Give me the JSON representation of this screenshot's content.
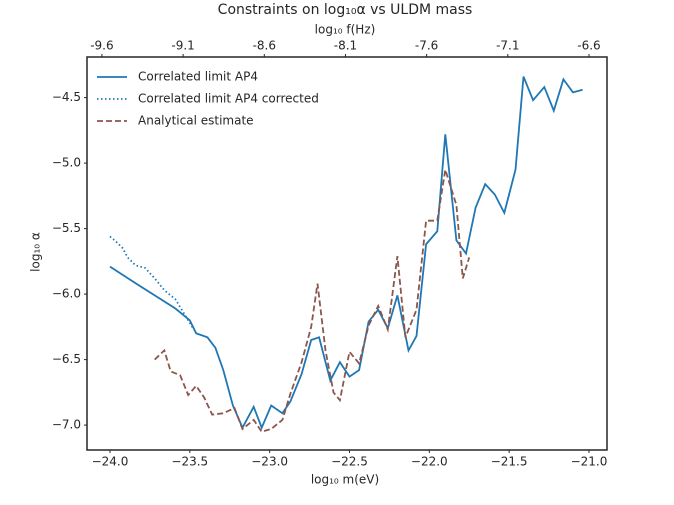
{
  "chart_data": {
    "type": "line",
    "title": "Constraints on log₁₀α vs ULDM mass",
    "x_label": "log₁₀ m(eV)",
    "x2_label": "log₁₀ f(Hz)",
    "y_label": "log₁₀ α",
    "xlim": [
      -24.144,
      -20.887
    ],
    "xticks": [
      {
        "value": -24.0,
        "label": "−24.0"
      },
      {
        "value": -23.5,
        "label": "−23.5"
      },
      {
        "value": -23.0,
        "label": "−23.0"
      },
      {
        "value": -22.5,
        "label": "−22.5"
      },
      {
        "value": -22.0,
        "label": "−22.0"
      },
      {
        "value": -21.5,
        "label": "−21.5"
      },
      {
        "value": -21.0,
        "label": "−21.0"
      }
    ],
    "x2lim": [
      -9.692,
      -6.489
    ],
    "x2ticks": [
      -9.6,
      -9.1,
      -8.6,
      -8.1,
      -7.6,
      -7.1,
      -6.6
    ],
    "ylim": [
      -7.19,
      -4.19
    ],
    "yticks": [
      {
        "value": -7.0,
        "label": "−7.0"
      },
      {
        "value": -6.5,
        "label": "−6.5"
      },
      {
        "value": -6.0,
        "label": "−6.0"
      },
      {
        "value": -5.5,
        "label": "−5.5"
      },
      {
        "value": -5.0,
        "label": "−5.0"
      },
      {
        "value": -4.5,
        "label": "−4.5"
      }
    ],
    "grid": false,
    "legend": "upper left",
    "series": [
      {
        "name": "Correlated limit AP4",
        "color": "#1f77b4",
        "linestyle": "solid",
        "x": [
          -24.0,
          -23.81,
          -23.59,
          -23.5,
          -23.46,
          -23.39,
          -23.34,
          -23.29,
          -23.23,
          -23.17,
          -23.1,
          -23.05,
          -22.99,
          -22.92,
          -22.87,
          -22.8,
          -22.74,
          -22.69,
          -22.62,
          -22.56,
          -22.5,
          -22.44,
          -22.38,
          -22.32,
          -22.26,
          -22.2,
          -22.13,
          -22.08,
          -22.02,
          -21.95,
          -21.9,
          -21.83,
          -21.77,
          -21.71,
          -21.65,
          -21.59,
          -21.53,
          -21.46,
          -21.41,
          -21.35,
          -21.28,
          -21.22,
          -21.16,
          -21.1,
          -21.04
        ],
        "values": [
          -5.79,
          -5.94,
          -6.11,
          -6.2,
          -6.3,
          -6.33,
          -6.41,
          -6.58,
          -6.85,
          -7.02,
          -6.86,
          -7.02,
          -6.85,
          -6.91,
          -6.82,
          -6.61,
          -6.35,
          -6.33,
          -6.66,
          -6.52,
          -6.63,
          -6.58,
          -6.21,
          -6.12,
          -6.26,
          -6.01,
          -6.43,
          -6.32,
          -5.62,
          -5.52,
          -4.78,
          -5.59,
          -5.69,
          -5.34,
          -5.16,
          -5.24,
          -5.38,
          -5.05,
          -4.34,
          -4.52,
          -4.42,
          -4.6,
          -4.36,
          -4.46,
          -4.44
        ]
      },
      {
        "name": "Correlated limit AP4 corrected",
        "color": "#1f77b4",
        "linestyle": "dotted",
        "x": [
          -24.0,
          -23.97,
          -23.92,
          -23.89,
          -23.84,
          -23.78,
          -23.72,
          -23.66,
          -23.59,
          -23.53,
          -23.48
        ],
        "values": [
          -5.56,
          -5.59,
          -5.65,
          -5.72,
          -5.78,
          -5.8,
          -5.88,
          -5.97,
          -6.04,
          -6.16,
          -6.26
        ]
      },
      {
        "name": "Analytical estimate",
        "color": "#8c564b",
        "linestyle": "dashed",
        "x": [
          -23.72,
          -23.66,
          -23.62,
          -23.56,
          -23.51,
          -23.46,
          -23.41,
          -23.36,
          -23.29,
          -23.22,
          -23.17,
          -23.1,
          -23.05,
          -22.99,
          -22.92,
          -22.87,
          -22.8,
          -22.74,
          -22.7,
          -22.65,
          -22.6,
          -22.56,
          -22.5,
          -22.44,
          -22.38,
          -22.32,
          -22.26,
          -22.2,
          -22.15,
          -22.08,
          -22.02,
          -21.95,
          -21.9,
          -21.83,
          -21.79,
          -21.75
        ],
        "values": [
          -6.5,
          -6.43,
          -6.59,
          -6.62,
          -6.77,
          -6.7,
          -6.79,
          -6.92,
          -6.91,
          -6.87,
          -7.03,
          -6.96,
          -7.05,
          -7.03,
          -6.96,
          -6.76,
          -6.52,
          -6.25,
          -5.92,
          -6.43,
          -6.75,
          -6.81,
          -6.44,
          -6.53,
          -6.24,
          -6.09,
          -6.27,
          -5.71,
          -6.33,
          -6.12,
          -5.44,
          -5.44,
          -5.05,
          -5.32,
          -5.88,
          -5.72
        ]
      }
    ]
  }
}
